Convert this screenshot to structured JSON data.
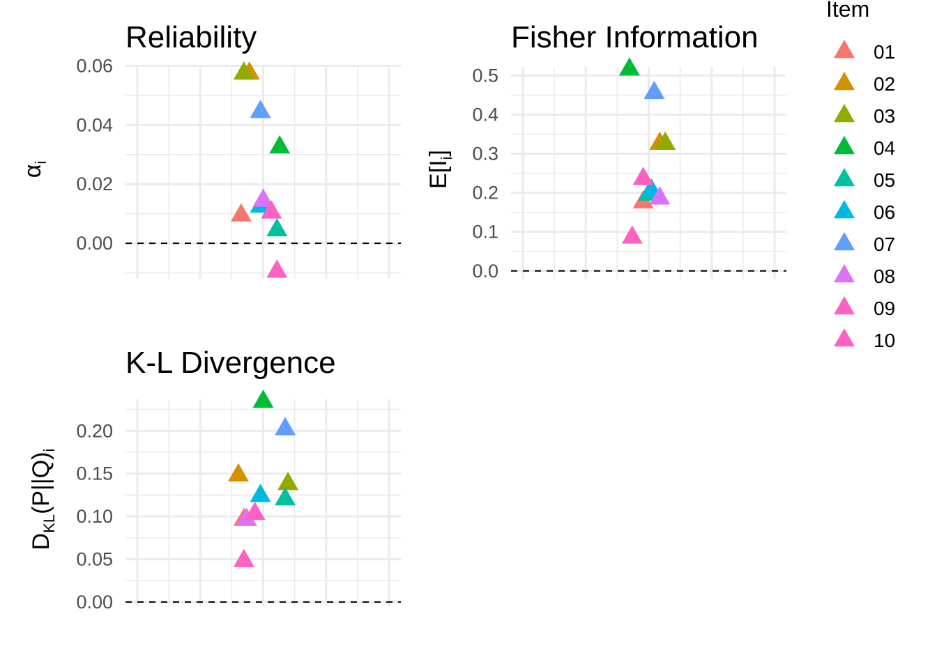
{
  "legend": {
    "title": "Item",
    "items": [
      {
        "label": "01",
        "color": "#F8766D"
      },
      {
        "label": "02",
        "color": "#D39200"
      },
      {
        "label": "03",
        "color": "#93AA00"
      },
      {
        "label": "04",
        "color": "#00BA38"
      },
      {
        "label": "05",
        "color": "#00C19F"
      },
      {
        "label": "06",
        "color": "#00B9E3"
      },
      {
        "label": "07",
        "color": "#619CFF"
      },
      {
        "label": "08",
        "color": "#DB72FB"
      },
      {
        "label": "09",
        "color": "#FF61C3"
      },
      {
        "label": "10",
        "color": "#FF61C3"
      }
    ]
  },
  "chart_data": [
    {
      "type": "scatter",
      "title": "Reliability",
      "ylabel": "α",
      "ylabel_sub": "i",
      "ylim": [
        -0.012,
        0.062
      ],
      "yticks": [
        "0.00",
        "0.02",
        "0.04",
        "0.06"
      ],
      "ytick_values": [
        0,
        0.02,
        0.04,
        0.06
      ],
      "reference_line_y": 0,
      "marker": "triangle",
      "points": [
        {
          "item": "01",
          "y": 0.01,
          "x_jitter": -0.08
        },
        {
          "item": "02",
          "y": 0.058,
          "x_jitter": -0.05
        },
        {
          "item": "03",
          "y": 0.058,
          "x_jitter": -0.07
        },
        {
          "item": "04",
          "y": 0.033,
          "x_jitter": 0.06
        },
        {
          "item": "05",
          "y": 0.005,
          "x_jitter": 0.05
        },
        {
          "item": "06",
          "y": 0.013,
          "x_jitter": -0.01
        },
        {
          "item": "07",
          "y": 0.045,
          "x_jitter": -0.01
        },
        {
          "item": "08",
          "y": 0.015,
          "x_jitter": 0.0
        },
        {
          "item": "09",
          "y": -0.009,
          "x_jitter": 0.05
        },
        {
          "item": "10",
          "y": 0.011,
          "x_jitter": 0.03
        }
      ]
    },
    {
      "type": "scatter",
      "title": "Fisher Information",
      "ylabel": "E[I",
      "ylabel_sub": "i",
      "ylabel_end": "]",
      "ylim": [
        -0.02,
        0.54
      ],
      "yticks": [
        "0.0",
        "0.1",
        "0.2",
        "0.3",
        "0.4",
        "0.5"
      ],
      "ytick_values": [
        0,
        0.1,
        0.2,
        0.3,
        0.4,
        0.5
      ],
      "reference_line_y": 0,
      "marker": "triangle",
      "points": [
        {
          "item": "01",
          "y": 0.18,
          "x_jitter": -0.02
        },
        {
          "item": "02",
          "y": 0.33,
          "x_jitter": 0.04
        },
        {
          "item": "03",
          "y": 0.33,
          "x_jitter": 0.06
        },
        {
          "item": "04",
          "y": 0.52,
          "x_jitter": -0.07
        },
        {
          "item": "05",
          "y": 0.2,
          "x_jitter": 0.0
        },
        {
          "item": "06",
          "y": 0.21,
          "x_jitter": 0.01
        },
        {
          "item": "07",
          "y": 0.46,
          "x_jitter": 0.02
        },
        {
          "item": "08",
          "y": 0.19,
          "x_jitter": 0.04
        },
        {
          "item": "09",
          "y": 0.09,
          "x_jitter": -0.06
        },
        {
          "item": "10",
          "y": 0.24,
          "x_jitter": -0.02
        }
      ]
    },
    {
      "type": "scatter",
      "title": "K-L Divergence",
      "ylabel": "D",
      "ylabel_sub": "KL",
      "ylabel_end": "(P||Q)",
      "ylabel_sub2": "i",
      "ylim": [
        -0.005,
        0.245
      ],
      "yticks": [
        "0.00",
        "0.05",
        "0.10",
        "0.15",
        "0.20"
      ],
      "ytick_values": [
        0,
        0.05,
        0.1,
        0.15,
        0.2
      ],
      "reference_line_y": 0,
      "marker": "triangle",
      "points": [
        {
          "item": "01",
          "y": 0.098,
          "x_jitter": -0.07
        },
        {
          "item": "02",
          "y": 0.15,
          "x_jitter": -0.09
        },
        {
          "item": "03",
          "y": 0.14,
          "x_jitter": 0.09
        },
        {
          "item": "04",
          "y": 0.236,
          "x_jitter": 0.0
        },
        {
          "item": "05",
          "y": 0.122,
          "x_jitter": 0.08
        },
        {
          "item": "06",
          "y": 0.126,
          "x_jitter": -0.01
        },
        {
          "item": "07",
          "y": 0.204,
          "x_jitter": 0.08
        },
        {
          "item": "08",
          "y": 0.098,
          "x_jitter": -0.06
        },
        {
          "item": "09",
          "y": 0.05,
          "x_jitter": -0.07
        },
        {
          "item": "10",
          "y": 0.105,
          "x_jitter": -0.03
        }
      ]
    }
  ]
}
